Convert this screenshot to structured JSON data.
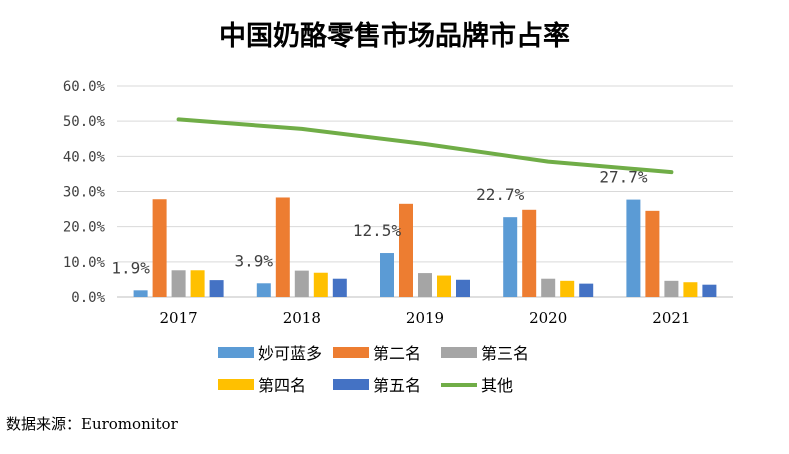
{
  "chart_data": {
    "type": "bar",
    "title": "中国奶酪零售市场品牌市占率",
    "categories": [
      "2017",
      "2018",
      "2019",
      "2020",
      "2021"
    ],
    "ylim": [
      0,
      60
    ],
    "yticks": [
      "0.0%",
      "10.0%",
      "20.0%",
      "30.0%",
      "40.0%",
      "50.0%",
      "60.0%"
    ],
    "grid": true,
    "legend_position": "bottom",
    "series": [
      {
        "name": "妙可蓝多",
        "color": "#5B9BD5",
        "values": [
          1.9,
          3.9,
          12.5,
          22.7,
          27.7
        ]
      },
      {
        "name": "第二名",
        "color": "#ED7D31",
        "values": [
          27.8,
          28.3,
          26.5,
          24.8,
          24.5
        ]
      },
      {
        "name": "第三名",
        "color": "#A5A5A5",
        "values": [
          7.6,
          7.5,
          6.8,
          5.2,
          4.6
        ]
      },
      {
        "name": "第四名",
        "color": "#FFC000",
        "values": [
          7.6,
          6.9,
          6.1,
          4.6,
          4.2
        ]
      },
      {
        "name": "第五名",
        "color": "#4472C4",
        "values": [
          4.8,
          5.2,
          4.9,
          3.8,
          3.5
        ]
      }
    ],
    "line_series": {
      "name": "其他",
      "color": "#70AD47",
      "values": [
        50.5,
        47.8,
        43.5,
        38.5,
        35.5
      ]
    },
    "data_labels": [
      "1.9%",
      "3.9%",
      "12.5%",
      "22.7%",
      "27.7%"
    ]
  },
  "source": "数据来源：Euromonitor"
}
